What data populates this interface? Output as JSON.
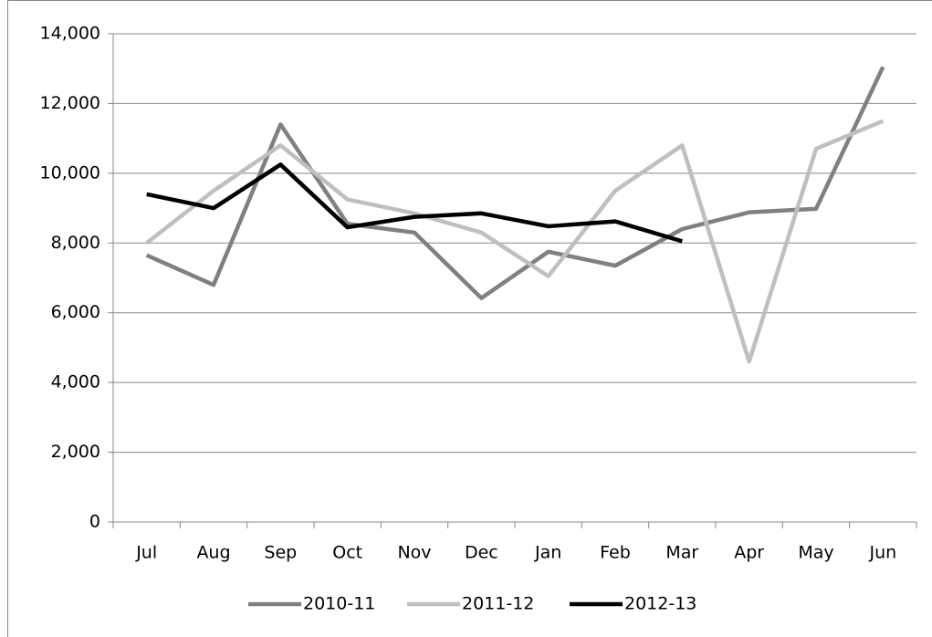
{
  "chart_data": {
    "type": "line",
    "categories": [
      "Jul",
      "Aug",
      "Sep",
      "Oct",
      "Nov",
      "Dec",
      "Jan",
      "Feb",
      "Mar",
      "Apr",
      "May",
      "Jun"
    ],
    "series": [
      {
        "name": "2010-11",
        "color": "#808080",
        "values": [
          7650,
          6800,
          11400,
          8550,
          8300,
          6420,
          7750,
          7350,
          8400,
          8880,
          8980,
          13050
        ]
      },
      {
        "name": "2011-12",
        "color": "#bfbfbf",
        "values": [
          8000,
          9500,
          10800,
          9250,
          8850,
          8300,
          7050,
          9500,
          10800,
          4600,
          10700,
          11500
        ]
      },
      {
        "name": "2012-13",
        "color": "#000000",
        "values": [
          9400,
          9000,
          10250,
          8450,
          8750,
          8850,
          8480,
          8620,
          8050,
          null,
          null,
          null
        ]
      }
    ],
    "ylim": [
      0,
      14000
    ],
    "yticks": [
      0,
      {
        "value": 2000,
        "label": "2,000"
      },
      {
        "value": 4000,
        "label": "4,000"
      },
      {
        "value": 6000,
        "label": "6,000"
      },
      {
        "value": 8000,
        "label": "8,000"
      },
      {
        "value": 10000,
        "label": "10,000"
      },
      {
        "value": 12000,
        "label": "12,000"
      },
      {
        "value": 14000,
        "label": "14,000"
      }
    ],
    "grid": true,
    "legend": "bottom"
  }
}
